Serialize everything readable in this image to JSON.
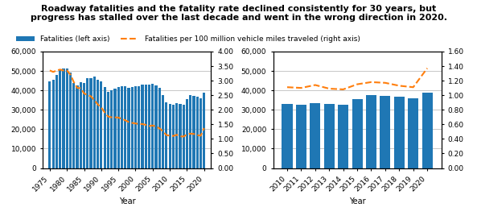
{
  "chart_data": [
    {
      "type": "bar",
      "title": "Roadway fatalities and the fatality rate declined consistently for 30 years, but\nprogress has stalled over the last decade and went in the wrong direction in 2020.",
      "xlabel": "Year",
      "x": [
        1975,
        1976,
        1977,
        1978,
        1979,
        1980,
        1981,
        1982,
        1983,
        1984,
        1985,
        1986,
        1987,
        1988,
        1989,
        1990,
        1991,
        1992,
        1993,
        1994,
        1995,
        1996,
        1997,
        1998,
        1999,
        2000,
        2001,
        2002,
        2003,
        2004,
        2005,
        2006,
        2007,
        2008,
        2009,
        2010,
        2011,
        2012,
        2013,
        2014,
        2015,
        2016,
        2017,
        2018,
        2019,
        2020
      ],
      "xlim": [
        1973,
        2022
      ],
      "xticks": [
        1975,
        1980,
        1985,
        1990,
        1995,
        2000,
        2005,
        2010,
        2015,
        2020
      ],
      "ylim": [
        0,
        60000
      ],
      "yticks": [
        0,
        {
          "value": 10000,
          "label": "10,000"
        },
        {
          "value": 20000,
          "label": "20,000"
        },
        {
          "value": 30000,
          "label": "30,000"
        },
        {
          "value": 40000,
          "label": "40,000"
        },
        {
          "value": 50000,
          "label": "50,000"
        },
        {
          "value": 60000,
          "label": "60,000"
        }
      ],
      "y2lim": [
        0.0,
        4.0
      ],
      "y2ticks": [
        {
          "value": 0.0,
          "label": "0.00"
        },
        {
          "value": 0.5,
          "label": "0.50"
        },
        {
          "value": 1.0,
          "label": "1.00"
        },
        {
          "value": 1.5,
          "label": "1.50"
        },
        {
          "value": 2.0,
          "label": "2.00"
        },
        {
          "value": 2.5,
          "label": "2.50"
        },
        {
          "value": 3.0,
          "label": "3.00"
        },
        {
          "value": 3.5,
          "label": "3.50"
        },
        {
          "value": 4.0,
          "label": "4.00"
        }
      ],
      "grid": true,
      "legend": "upper left",
      "series": [
        {
          "name": "Fatalities (left axis)",
          "type": "bar",
          "values": [
            44525,
            45523,
            47878,
            50331,
            51093,
            51091,
            49301,
            43945,
            42589,
            44257,
            43825,
            46087,
            46390,
            47087,
            45582,
            44599,
            41508,
            39250,
            40150,
            40716,
            41817,
            42065,
            42013,
            41501,
            41717,
            41945,
            42196,
            43005,
            42884,
            42836,
            43510,
            42708,
            41259,
            37423,
            33883,
            32999,
            32479,
            33561,
            32894,
            32675,
            35485,
            37461,
            37133,
            36560,
            36096,
            38824
          ]
        },
        {
          "name": "Fatalities per 100 million vehicle miles traveled (right axis)",
          "type": "line",
          "line_style": "dashed",
          "axis": "y2",
          "values": [
            3.35,
            3.3,
            3.35,
            3.38,
            3.35,
            3.35,
            3.21,
            2.95,
            2.75,
            2.74,
            2.56,
            2.51,
            2.46,
            2.33,
            2.18,
            2.08,
            1.91,
            1.77,
            1.74,
            1.74,
            1.73,
            1.69,
            1.64,
            1.58,
            1.55,
            1.53,
            1.51,
            1.51,
            1.48,
            1.44,
            1.46,
            1.42,
            1.36,
            1.26,
            1.13,
            1.11,
            1.1,
            1.14,
            1.09,
            1.08,
            1.15,
            1.18,
            1.17,
            1.13,
            1.11,
            1.37
          ]
        }
      ]
    },
    {
      "type": "bar",
      "xlabel": "Year",
      "x": [
        2010,
        2011,
        2012,
        2013,
        2014,
        2015,
        2016,
        2017,
        2018,
        2019,
        2020
      ],
      "xlim": [
        2009,
        2021
      ],
      "xticks": [
        2010,
        2011,
        2012,
        2013,
        2014,
        2015,
        2016,
        2017,
        2018,
        2019,
        2020
      ],
      "ylim": [
        0,
        60000
      ],
      "yticks": [
        0,
        {
          "value": 10000,
          "label": "10,000"
        },
        {
          "value": 20000,
          "label": "20,000"
        },
        {
          "value": 30000,
          "label": "30,000"
        },
        {
          "value": 40000,
          "label": "40,000"
        },
        {
          "value": 50000,
          "label": "50,000"
        },
        {
          "value": 60000,
          "label": "60,000"
        }
      ],
      "y2lim": [
        0.0,
        1.6
      ],
      "y2ticks": [
        {
          "value": 0.0,
          "label": "0.00"
        },
        {
          "value": 0.2,
          "label": "0.20"
        },
        {
          "value": 0.4,
          "label": "0.40"
        },
        {
          "value": 0.6,
          "label": "0.60"
        },
        {
          "value": 0.8,
          "label": "0.80"
        },
        {
          "value": 1.0,
          "label": "1.00"
        },
        {
          "value": 1.2,
          "label": "1.20"
        },
        {
          "value": 1.4,
          "label": "1.40"
        },
        {
          "value": 1.6,
          "label": "1.60"
        }
      ],
      "grid": true,
      "series": [
        {
          "type": "bar",
          "values": [
            32999,
            32479,
            33561,
            32894,
            32675,
            35485,
            37461,
            37133,
            36560,
            36096,
            38824
          ]
        },
        {
          "type": "line",
          "line_style": "dashed",
          "axis": "y2",
          "values": [
            1.11,
            1.1,
            1.14,
            1.09,
            1.08,
            1.15,
            1.18,
            1.17,
            1.13,
            1.11,
            1.37
          ]
        }
      ]
    }
  ]
}
